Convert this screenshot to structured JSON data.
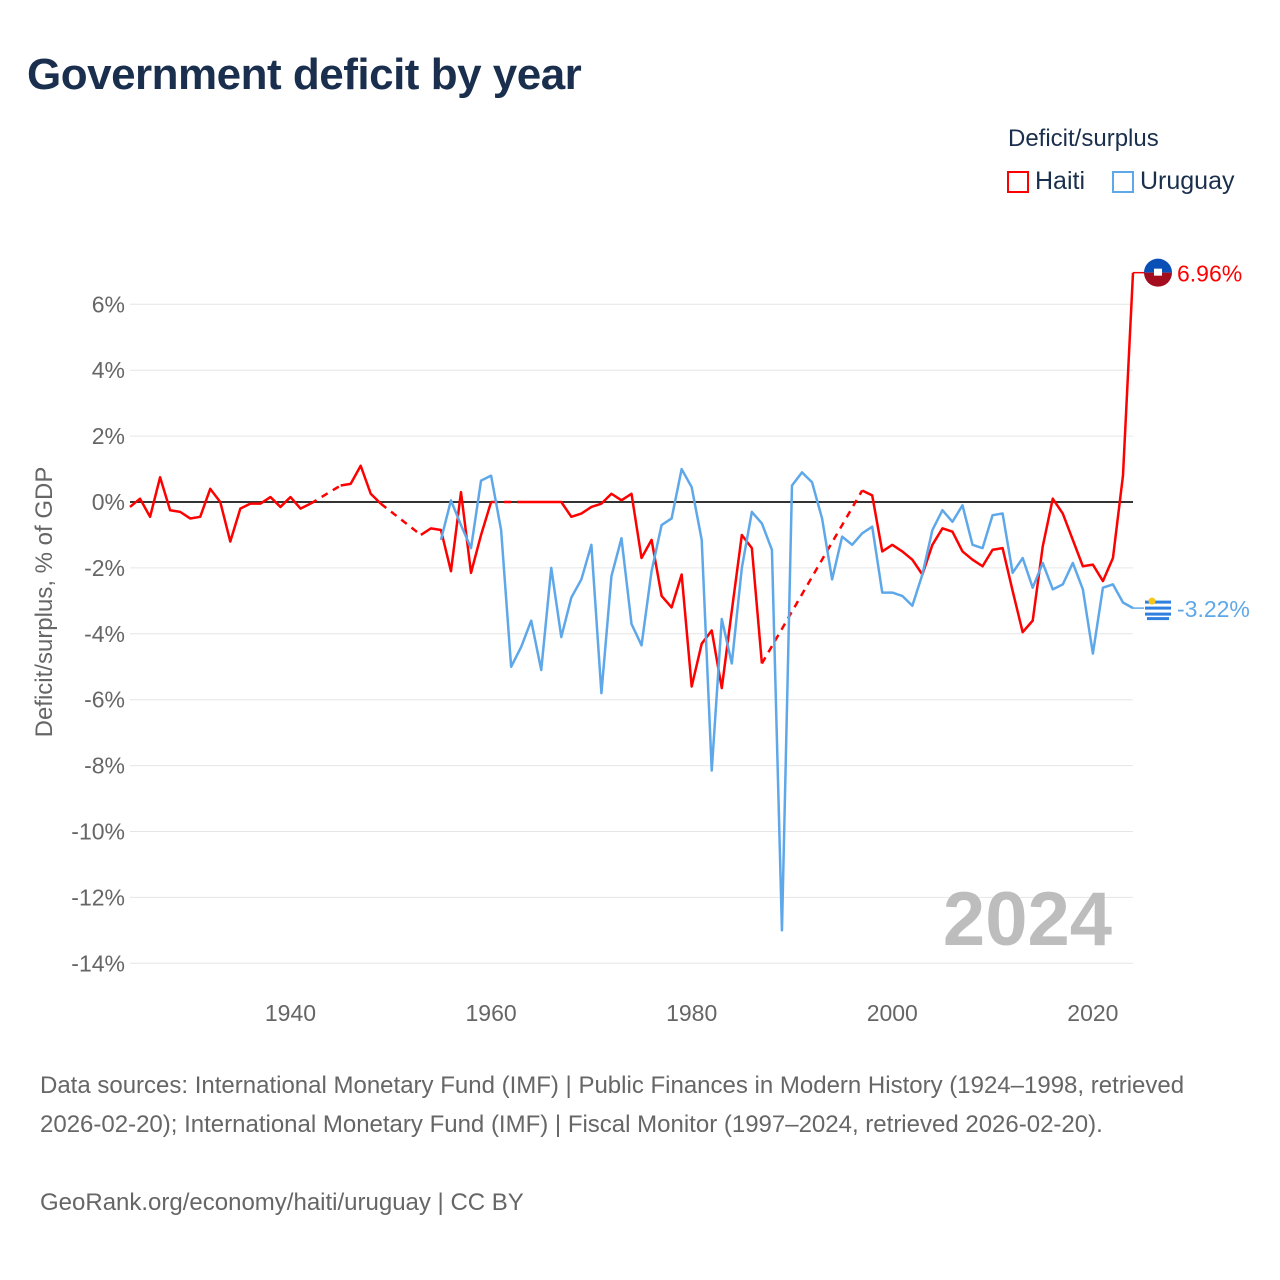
{
  "title": "Government deficit by year",
  "legend": {
    "title": "Deficit/surplus",
    "items": [
      {
        "name": "Haiti",
        "color": "#ff0000"
      },
      {
        "name": "Uruguay",
        "color": "#5ea8ea"
      }
    ]
  },
  "footer": {
    "sources": "Data sources: International Monetary Fund (IMF) | Public Finances in Modern History (1924–1998, retrieved 2026-02-20); International Monetary Fund (IMF) | Fiscal Monitor (1997–2024, retrieved 2026-02-20).",
    "link": "GeoRank.org/economy/haiti/uruguay | CC BY"
  },
  "chart_data": {
    "type": "line",
    "title": "Government deficit by year",
    "ylabel": "Deficit/surplus, % of GDP",
    "xlabel": "",
    "xlim": [
      1924,
      2024
    ],
    "ylim": [
      -14.6,
      7.2
    ],
    "x_ticks": [
      1940,
      1960,
      1980,
      2000,
      2020
    ],
    "y_ticks": [
      6,
      4,
      2,
      0,
      -2,
      -4,
      -6,
      -8,
      -10,
      -12,
      -14
    ],
    "y_tick_labels": [
      "6%",
      "4%",
      "2%",
      "0%",
      "-2%",
      "-4%",
      "-6%",
      "-8%",
      "-10%",
      "-12%",
      "-14%"
    ],
    "year_watermark": "2024",
    "end_labels": {
      "Haiti": "6.96%",
      "Uruguay": "-3.22%"
    },
    "series": [
      {
        "name": "Haiti",
        "color": "#ff0000",
        "start_year": 1924,
        "values": [
          -0.15,
          0.1,
          -0.45,
          0.75,
          -0.25,
          -0.3,
          -0.5,
          -0.45,
          0.4,
          0.0,
          -1.2,
          -0.2,
          -0.05,
          -0.05,
          0.15,
          -0.15,
          0.15,
          -0.2,
          -0.05,
          null,
          null,
          0.5,
          0.55,
          1.1,
          0.25,
          -0.05,
          null,
          null,
          null,
          -1.0,
          -0.8,
          -0.85,
          -2.1,
          0.3,
          -2.15,
          -1.0,
          0.0,
          null,
          null,
          0.0,
          0.0,
          0.0,
          0.0,
          0.0,
          -0.45,
          -0.35,
          -0.15,
          -0.05,
          0.25,
          0.05,
          0.25,
          -1.7,
          -1.15,
          -2.85,
          -3.2,
          -2.2,
          -5.6,
          -4.3,
          -3.9,
          -5.65,
          -3.3,
          -1.0,
          -1.4,
          -4.9,
          null,
          null,
          null,
          null,
          null,
          null,
          null,
          null,
          null,
          0.35,
          0.2,
          -1.5,
          -1.3,
          -1.5,
          -1.75,
          -2.2,
          -1.3,
          -0.8,
          -0.9,
          -1.5,
          -1.75,
          -1.95,
          -1.45,
          -1.4,
          -2.7,
          -3.95,
          -3.6,
          -1.35,
          0.1,
          -0.35,
          -1.15,
          -1.95,
          -1.9,
          -2.4,
          -1.7,
          0.8,
          6.96
        ]
      },
      {
        "name": "Uruguay",
        "color": "#5ea8ea",
        "start_year": 1955,
        "values": [
          -1.15,
          0.05,
          -0.7,
          -1.4,
          0.65,
          0.8,
          -0.85,
          -5.0,
          -4.4,
          -3.6,
          -5.1,
          -2.0,
          -4.1,
          -2.9,
          -2.35,
          -1.3,
          -5.8,
          -2.25,
          -1.1,
          -3.7,
          -4.35,
          -2.1,
          -0.7,
          -0.5,
          1.0,
          0.45,
          -1.15,
          -8.15,
          -3.55,
          -4.9,
          -2.0,
          -0.3,
          -0.65,
          -1.45,
          -13.0,
          0.5,
          0.9,
          0.6,
          -0.5,
          -2.35,
          -1.05,
          -1.3,
          -0.95,
          -0.75,
          -2.75,
          -2.75,
          -2.85,
          -3.15,
          -2.2,
          -0.85,
          -0.25,
          -0.6,
          -0.1,
          -1.3,
          -1.4,
          -0.4,
          -0.35,
          -2.15,
          -1.7,
          -2.6,
          -1.85,
          -2.65,
          -2.5,
          -1.85,
          -2.65,
          -4.6,
          -2.6,
          -2.5,
          -3.05,
          -3.22
        ]
      }
    ]
  }
}
